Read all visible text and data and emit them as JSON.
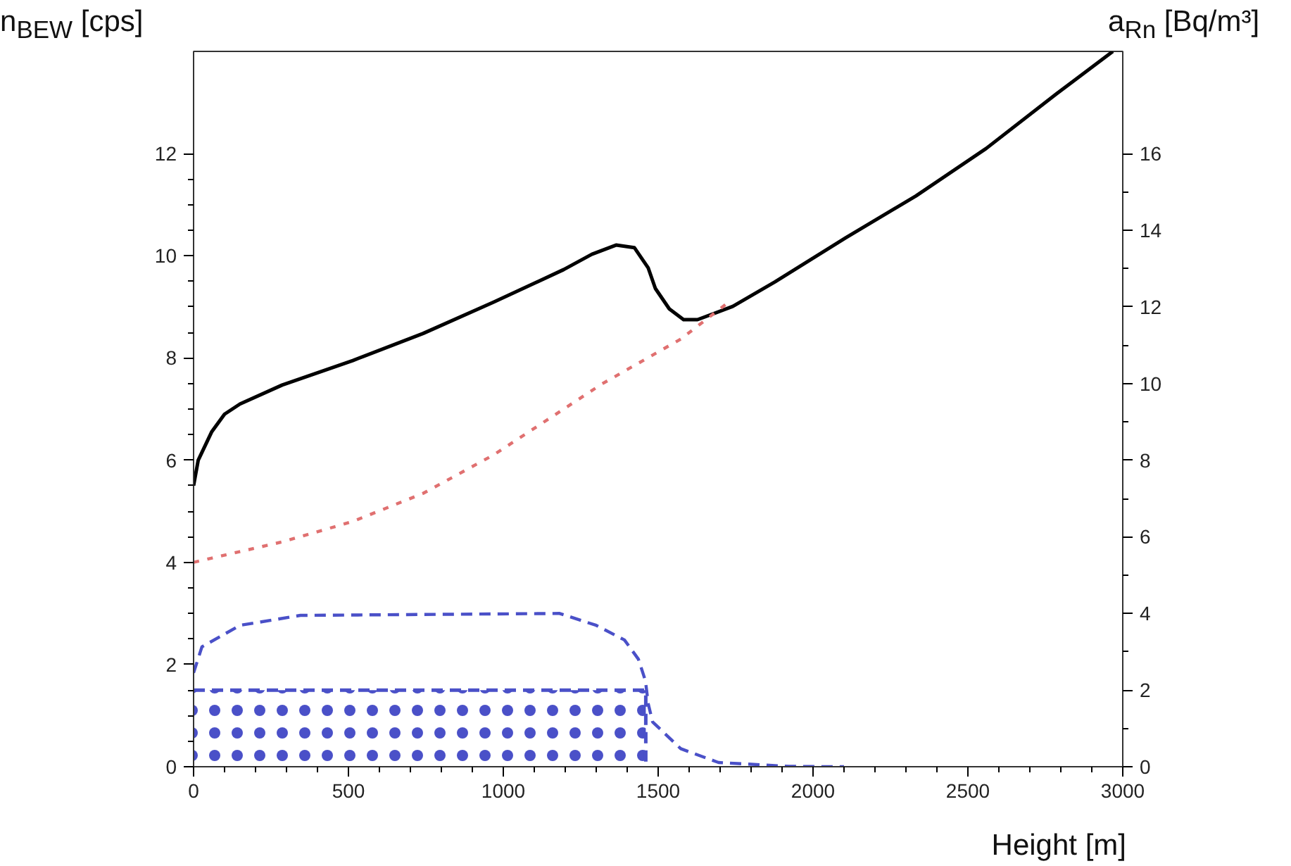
{
  "chart_data": {
    "type": "line",
    "xlabel": "Height [m]",
    "ylabel": "n$_{BEW}$ [cps]",
    "y2label": "a$_{Rn}$ [Bq/m³]",
    "xlim": [
      0,
      3000
    ],
    "ylim": [
      0,
      14
    ],
    "y2lim": [
      0,
      18.67
    ],
    "xticks": [
      0,
      500,
      1000,
      1500,
      2000,
      2500,
      3000
    ],
    "yticks": [
      0,
      2,
      4,
      6,
      8,
      10,
      12
    ],
    "y2ticks": [
      0,
      2,
      4,
      6,
      8,
      10,
      12,
      14,
      16
    ],
    "grid": false,
    "marker": "none",
    "series": [
      {
        "color": "#000000",
        "line_style": "solid",
        "x": [
          0,
          15,
          59,
          100,
          150,
          286,
          514,
          741,
          968,
          1195,
          1286,
          1364,
          1423,
          1468,
          1491,
          1536,
          1582,
          1627,
          1741,
          1877,
          2105,
          2332,
          2559,
          2786,
          2968
        ],
        "values": [
          5.5,
          6.0,
          6.56,
          6.9,
          7.1,
          7.47,
          7.95,
          8.48,
          9.09,
          9.73,
          10.03,
          10.21,
          10.16,
          9.76,
          9.36,
          8.96,
          8.75,
          8.75,
          9.01,
          9.49,
          10.35,
          11.17,
          12.1,
          13.17,
          14.0
        ]
      },
      {
        "color": "#e07070",
        "line_style": "dotted",
        "x": [
          0,
          286,
          514,
          741,
          968,
          1195,
          1318,
          1573,
          1727
        ],
        "values": [
          4.0,
          4.4,
          4.8,
          5.35,
          6.1,
          7.0,
          7.49,
          8.37,
          9.09
        ]
      },
      {
        "color": "#4a50c8",
        "line_style": "dashed",
        "axis": "y2",
        "x": [
          0,
          27,
          150,
          345,
          1182,
          1300,
          1391,
          1436,
          1459,
          1468,
          1482,
          1573,
          1695,
          1923,
          2059,
          2100
        ],
        "values": [
          2.45,
          3.13,
          3.69,
          3.95,
          4.0,
          3.69,
          3.31,
          2.81,
          2.24,
          1.64,
          1.17,
          0.47,
          0.11,
          0.01,
          0,
          0
        ]
      },
      {
        "type": "area",
        "color": "#4a50c8",
        "line_style": "dashed",
        "axis": "y2",
        "x": [
          0,
          1460
        ],
        "values": [
          2.0,
          2.0
        ]
      }
    ]
  }
}
